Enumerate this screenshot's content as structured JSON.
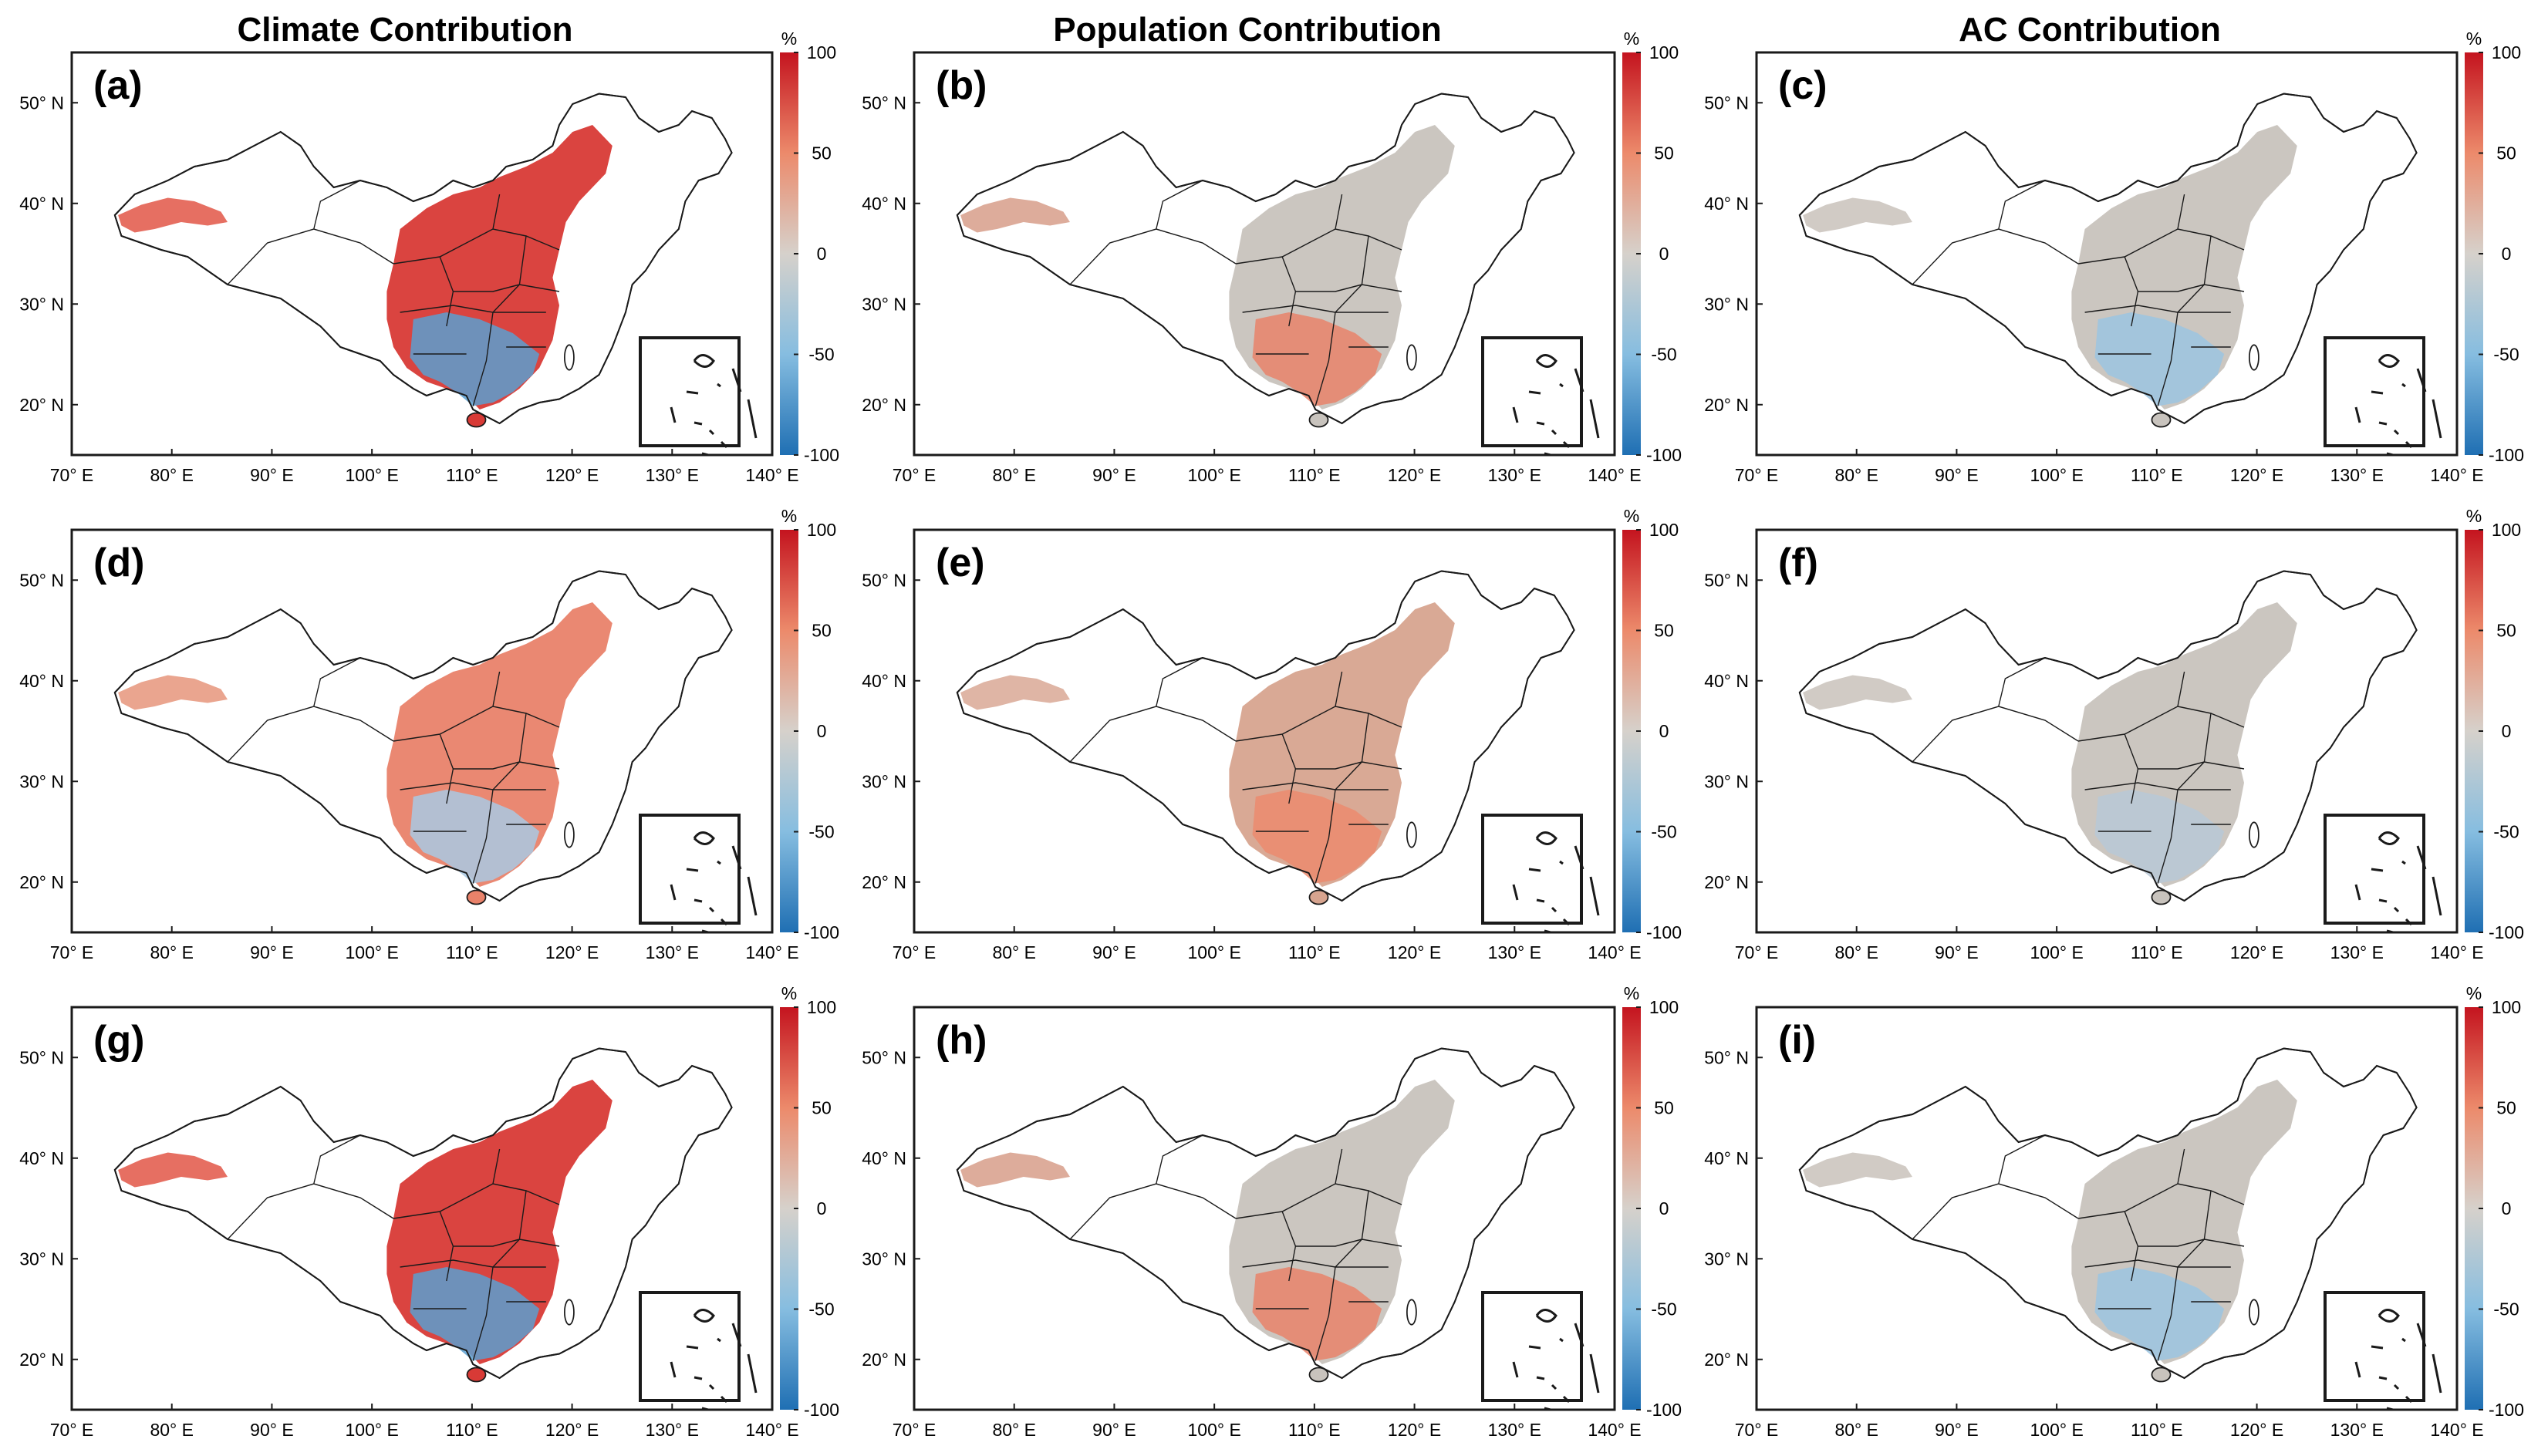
{
  "figure": {
    "column_titles": [
      "Climate Contribution",
      "Population Contribution",
      "AC Contribution"
    ],
    "panel_labels": [
      "(a)",
      "(b)",
      "(c)",
      "(d)",
      "(e)",
      "(f)",
      "(g)",
      "(h)",
      "(i)"
    ],
    "colorbar": {
      "unit": "%",
      "ticks": [
        "100",
        "50",
        "0",
        "-50",
        "-100"
      ],
      "min": -100,
      "max": 100,
      "colors": {
        "negative": "#2166ac",
        "mid_negative": "#92c5de",
        "neutral": "#c8c3bd",
        "mid_positive": "#f4a582",
        "positive": "#d6202b"
      }
    },
    "axes": {
      "lon_ticks": [
        "70° E",
        "80° E",
        "90° E",
        "100° E",
        "110° E",
        "120° E",
        "130° E",
        "140° E"
      ],
      "lat_ticks": [
        "50° N",
        "40° N",
        "30° N",
        "20° N"
      ],
      "lon_range": [
        70,
        140
      ],
      "lat_range": [
        15,
        55
      ]
    },
    "panel_fill": {
      "a": "#d83a36",
      "b": "#c8c3bd",
      "c": "#c8c3bd",
      "d": "#e9826a",
      "e": "#d7a48f",
      "f": "#c8c3bd",
      "g": "#d83a36",
      "h": "#c8c3bd",
      "i": "#c8c3bd"
    },
    "panel_south": {
      "a": "#5a9fd0",
      "b": "#e9826a",
      "c": "#9cc4e0",
      "d": "#a9c9e3",
      "e": "#eb8b6f",
      "f": "#b9c8d6",
      "g": "#5a9fd0",
      "h": "#e9826a",
      "i": "#9cc4e0"
    },
    "panel_west": {
      "a": "#e5675a",
      "b": "#dba896",
      "c": "#cfc8c2",
      "d": "#e9a089",
      "e": "#ddb1a0",
      "f": "#cfc8c2",
      "g": "#e5675a",
      "h": "#dba896",
      "i": "#cfc8c2"
    }
  }
}
